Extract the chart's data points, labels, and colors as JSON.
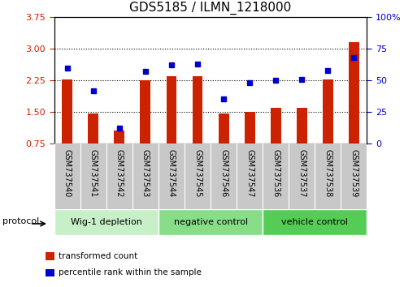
{
  "title": "GDS5185 / ILMN_1218000",
  "samples": [
    "GSM737540",
    "GSM737541",
    "GSM737542",
    "GSM737543",
    "GSM737544",
    "GSM737545",
    "GSM737546",
    "GSM737547",
    "GSM737536",
    "GSM737537",
    "GSM737538",
    "GSM737539"
  ],
  "transformed_count": [
    2.28,
    1.47,
    1.05,
    2.25,
    2.35,
    2.35,
    1.46,
    1.5,
    1.6,
    1.6,
    2.28,
    3.15
  ],
  "percentile_rank": [
    60,
    42,
    12,
    57,
    62,
    63,
    35,
    48,
    50,
    51,
    58,
    68
  ],
  "ylim_left": [
    0.75,
    3.75
  ],
  "ylim_right": [
    0,
    100
  ],
  "yticks_left": [
    0.75,
    1.5,
    2.25,
    3.0,
    3.75
  ],
  "yticks_right": [
    0,
    25,
    50,
    75,
    100
  ],
  "groups": [
    {
      "label": "Wig-1 depletion",
      "count": 4,
      "color": "#c8f0c8"
    },
    {
      "label": "negative control",
      "count": 4,
      "color": "#88dd88"
    },
    {
      "label": "vehicle control",
      "count": 4,
      "color": "#55cc55"
    }
  ],
  "bar_color": "#cc2200",
  "dot_color": "#0000cc",
  "tick_color_left": "#cc2200",
  "tick_color_right": "#0000cc",
  "title_fontsize": 11,
  "protocol_label": "protocol",
  "bg_color_xticks": "#c8c8c8",
  "legend_items": [
    {
      "color": "#cc2200",
      "label": "transformed count"
    },
    {
      "color": "#0000cc",
      "label": "percentile rank within the sample"
    }
  ]
}
